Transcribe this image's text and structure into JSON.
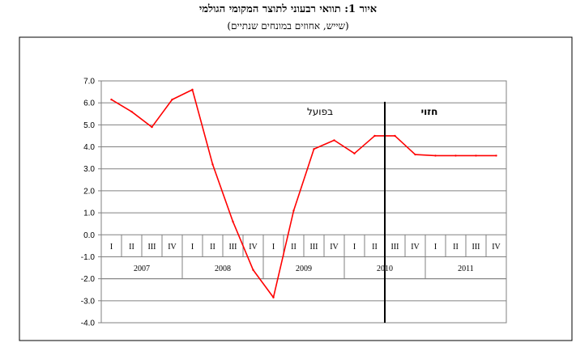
{
  "title": "איור 1: תוואי רבעוני לתוצר המקומי הגולמי",
  "subtitle": "(שייש, אחוזים במונחים שנתיים)",
  "chart_data": {
    "type": "line",
    "title": "איור 1: תוואי רבעוני לתוצר המקומי הגולמי",
    "subtitle": "(שייש, אחוזים במונחים שנתיים)",
    "xlabel": "",
    "ylabel": "",
    "ylim": [
      -4.0,
      7.0
    ],
    "ytick_step": 1.0,
    "yticks": [
      "7.0",
      "6.0",
      "5.0",
      "4.0",
      "3.0",
      "2.0",
      "1.0",
      "0.0",
      "-1.0",
      "-2.0",
      "-3.0",
      "-4.0"
    ],
    "grid": true,
    "quarters": [
      "I",
      "II",
      "III",
      "IV",
      "I",
      "II",
      "III",
      "IV",
      "I",
      "II",
      "III",
      "IV",
      "I",
      "II",
      "III",
      "IV",
      "I",
      "II",
      "III",
      "IV"
    ],
    "years": [
      "2007",
      "2008",
      "2009",
      "2010",
      "2011"
    ],
    "series": [
      {
        "color": "#ff0000",
        "values": [
          6.15,
          5.6,
          4.9,
          6.15,
          6.6,
          3.2,
          0.6,
          -1.6,
          -2.85,
          1.1,
          3.9,
          4.3,
          3.7,
          4.5,
          4.5,
          3.65,
          3.6,
          3.6,
          3.6,
          3.6
        ]
      }
    ],
    "divider_after_index": 13,
    "annotations": {
      "actual": "בפועל",
      "forecast": "חזוי"
    }
  }
}
